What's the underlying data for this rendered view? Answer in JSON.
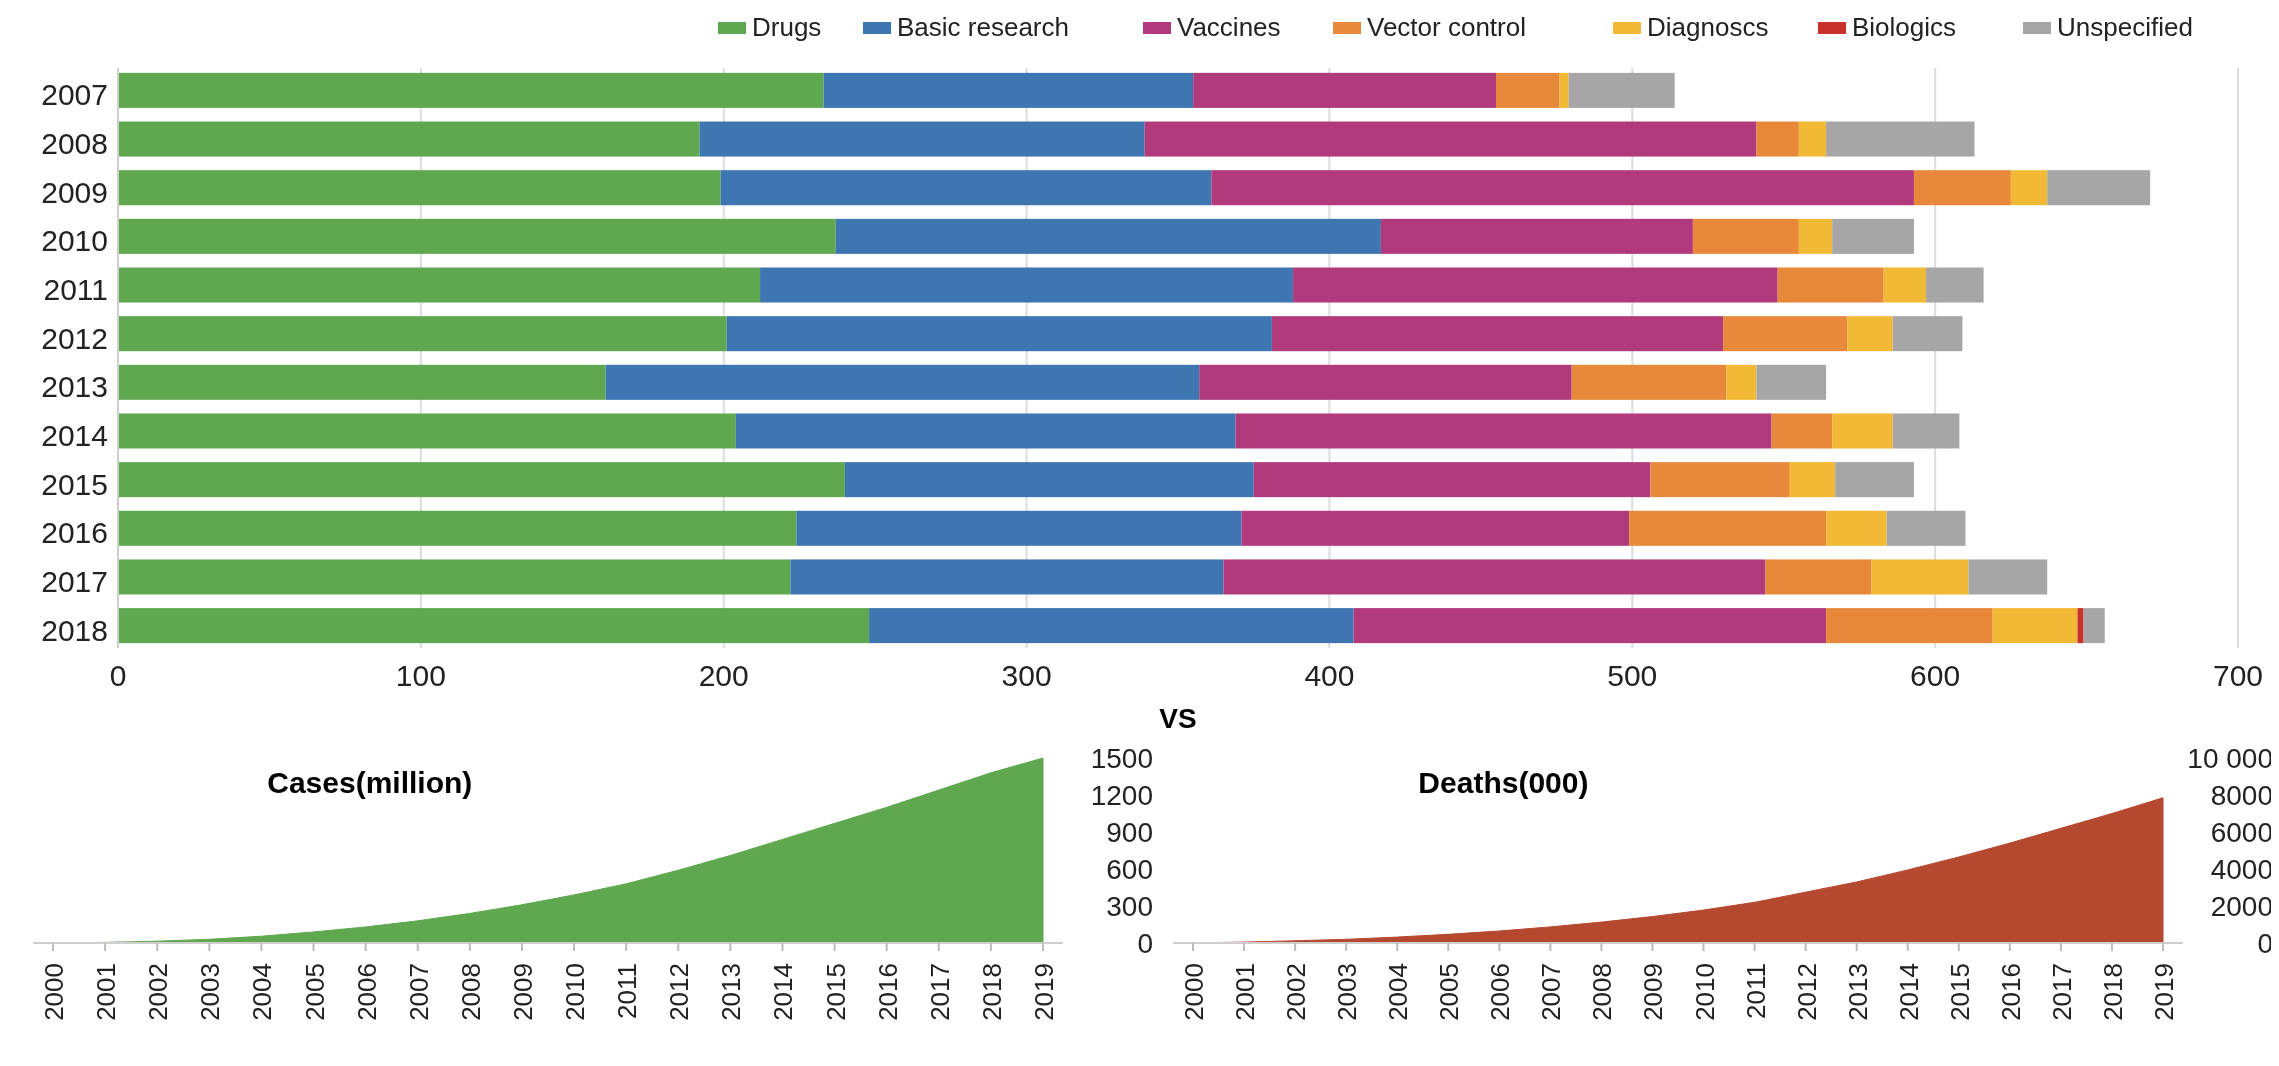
{
  "chart_data": [
    {
      "type": "bar",
      "orientation": "horizontal",
      "stacked": true,
      "xlabel": "VS",
      "categories": [
        "2007",
        "2008",
        "2009",
        "2010",
        "2011",
        "2012",
        "2013",
        "2014",
        "2015",
        "2016",
        "2017",
        "2018"
      ],
      "xlim": [
        0,
        700
      ],
      "xticks": [
        0,
        100,
        200,
        300,
        400,
        500,
        600,
        700
      ],
      "grid": "x",
      "legend": "top right",
      "series": [
        {
          "name": "Drugs",
          "color": "#5fa84f",
          "values": [
            233,
            192,
            199,
            237,
            212,
            201,
            161,
            204,
            240,
            224,
            222,
            248
          ]
        },
        {
          "name": "Basic research",
          "color": "#3d76b0",
          "values": [
            122,
            147,
            162,
            180,
            176,
            180,
            196,
            165,
            135,
            147,
            143,
            160
          ]
        },
        {
          "name": "Vaccines",
          "color": "#b03a7c",
          "values": [
            100,
            202,
            232,
            103,
            160,
            149,
            123,
            177,
            131,
            128,
            179,
            156
          ]
        },
        {
          "name": "Vector control",
          "color": "#e8883a",
          "values": [
            21,
            14,
            32,
            35,
            35,
            41,
            51,
            20,
            46,
            65,
            35,
            55
          ]
        },
        {
          "name": "Diagnoscs",
          "color": "#f2b936",
          "values": [
            3,
            9,
            12,
            11,
            14,
            15,
            10,
            20,
            15,
            20,
            32,
            28
          ]
        },
        {
          "name": "Biologics",
          "color": "#c8322a",
          "values": [
            0,
            0,
            0,
            0,
            0,
            0,
            0,
            0,
            0,
            0,
            0,
            2
          ]
        },
        {
          "name": "Unspecified",
          "color": "#a6a6a6",
          "values": [
            35,
            49,
            34,
            27,
            19,
            23,
            23,
            22,
            26,
            26,
            26,
            7
          ]
        }
      ]
    },
    {
      "type": "area",
      "title": "Cases(million)",
      "categories": [
        "2000",
        "2001",
        "2002",
        "2003",
        "2004",
        "2005",
        "2006",
        "2007",
        "2008",
        "2009",
        "2010",
        "2011",
        "2012",
        "2013",
        "2014",
        "2015",
        "2016",
        "2017",
        "2018",
        "2019"
      ],
      "ylim": [
        0,
        1500
      ],
      "yticks": [
        0,
        300,
        600,
        900,
        1200,
        1500
      ],
      "series": [
        {
          "color": "#5fa84f",
          "values": [
            0,
            5,
            15,
            30,
            55,
            90,
            130,
            180,
            240,
            310,
            390,
            480,
            590,
            710,
            840,
            970,
            1100,
            1240,
            1380,
            1500
          ]
        }
      ]
    },
    {
      "type": "area",
      "title": "Deaths(000)",
      "categories": [
        "2000",
        "2001",
        "2002",
        "2003",
        "2004",
        "2005",
        "2006",
        "2007",
        "2008",
        "2009",
        "2010",
        "2011",
        "2012",
        "2013",
        "2014",
        "2015",
        "2016",
        "2017",
        "2018",
        "2019"
      ],
      "ylim": [
        0,
        10000
      ],
      "yticks": [
        0,
        2000,
        4000,
        6000,
        8000,
        {
          "value": 10000,
          "label": "10 000"
        }
      ],
      "series": [
        {
          "color": "#b5492f",
          "values": [
            0,
            50,
            120,
            200,
            320,
            470,
            650,
            870,
            1130,
            1430,
            1780,
            2200,
            2750,
            3300,
            3950,
            4650,
            5400,
            6200,
            7000,
            7850
          ]
        }
      ]
    }
  ]
}
